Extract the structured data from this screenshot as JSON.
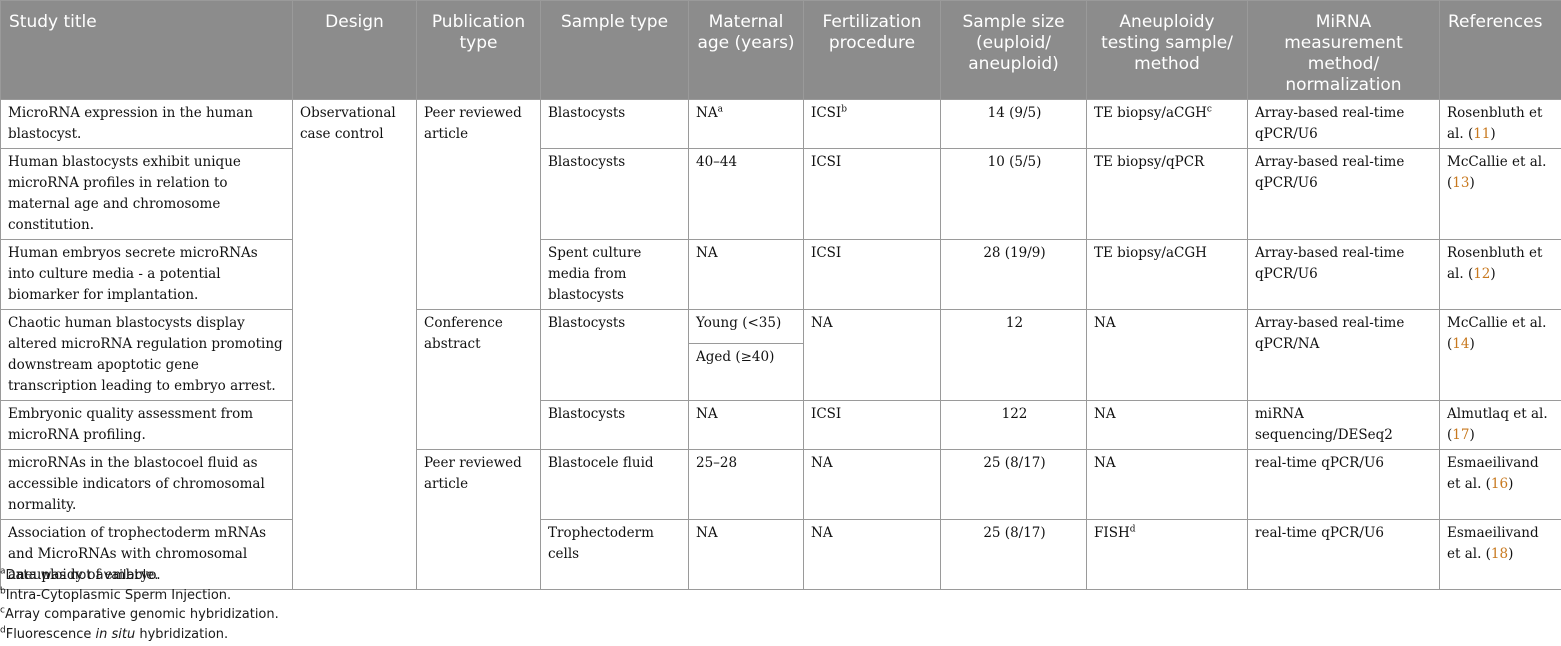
{
  "headers": [
    "Study title",
    "Design",
    "Publication type",
    "Sample type",
    "Maternal age (years)",
    "Fertilization procedure",
    "Sample size (euploid/ aneuploid)",
    "Aneuploidy testing sample/ method",
    "MiRNA measurement method/ normalization",
    "References"
  ],
  "design": "Observational case control",
  "pub_types": [
    "Peer reviewed article",
    "Conference abstract",
    "Peer reviewed article"
  ],
  "sample_types": [
    "Blastocysts",
    "Blastocysts",
    "Spent culture media from blastocysts",
    "Blastocysts",
    "Blastocysts",
    "Blastocele fluid",
    "Trophectoderm cells"
  ],
  "fert": [
    "ICSI",
    "ICSI",
    "ICSI",
    "NA",
    "ICSI",
    "NA",
    "NA"
  ],
  "titles": [
    "MicroRNA expression in the human blastocyst.",
    "Human blastocysts exhibit unique microRNA profiles in relation to maternal age and chromosome constitution.",
    "Human embryos secrete microRNAs into culture media - a potential biomarker for implantation.",
    "Chaotic human blastocysts display altered microRNA regulation promoting downstream apoptotic gene transcription leading to embryo arrest.",
    "Embryonic quality assessment from microRNA profiling.",
    "microRNAs in the blastocoel fluid as accessible indicators of chromosomal normality.",
    "Association of trophectoderm mRNAs and MicroRNAs with chromosomal aneuploidy of embryo."
  ],
  "ages": [
    "NA",
    "40–44",
    "NA",
    "Young (<35)",
    "Aged (≥40)",
    "NA",
    "25–28",
    "NA"
  ],
  "sizes": [
    "14 (9/5)",
    "10 (5/5)",
    "28 (19/9)",
    "12",
    "122",
    "25 (8/17)",
    "25 (8/17)"
  ],
  "aneu": [
    "TE biopsy/aCGH",
    "TE biopsy/qPCR",
    "TE biopsy/aCGH",
    "NA",
    "NA",
    "NA",
    "FISH"
  ],
  "mirna": [
    "Array-based real-time qPCR/U6",
    "Array-based real-time qPCR/U6",
    "Array-based real-time qPCR/U6",
    "Array-based real-time qPCR/NA",
    "miRNA sequencing/DESeq2",
    "real-time qPCR/U6",
    "real-time qPCR/U6"
  ],
  "refs": [
    {
      "a": "Rosenbluth et al. (",
      "n": "11",
      "z": ")"
    },
    {
      "a": "McCallie et al. (",
      "n": "13",
      "z": ")"
    },
    {
      "a": "Rosenbluth et al. (",
      "n": "12",
      "z": ")"
    },
    {
      "a": "McCallie et al. (",
      "n": "14",
      "z": ")"
    },
    {
      "a": "Almutlaq et al. (",
      "n": "17",
      "z": ")"
    },
    {
      "a": "Esmaeilivand et al. (",
      "n": "16",
      "z": ")"
    },
    {
      "a": "Esmaeilivand et al. (",
      "n": "18",
      "z": ")"
    }
  ],
  "sup": {
    "a": "a",
    "b": "b",
    "c": "c",
    "d": "d"
  },
  "notes": {
    "a": "Data was not available.",
    "b": "Intra-Cytoplasmic Sperm Injection.",
    "c": "Array comparative genomic hybridization.",
    "d_pre": "Fluorescence ",
    "d_em": "in situ",
    "d_post": " hybridization."
  }
}
